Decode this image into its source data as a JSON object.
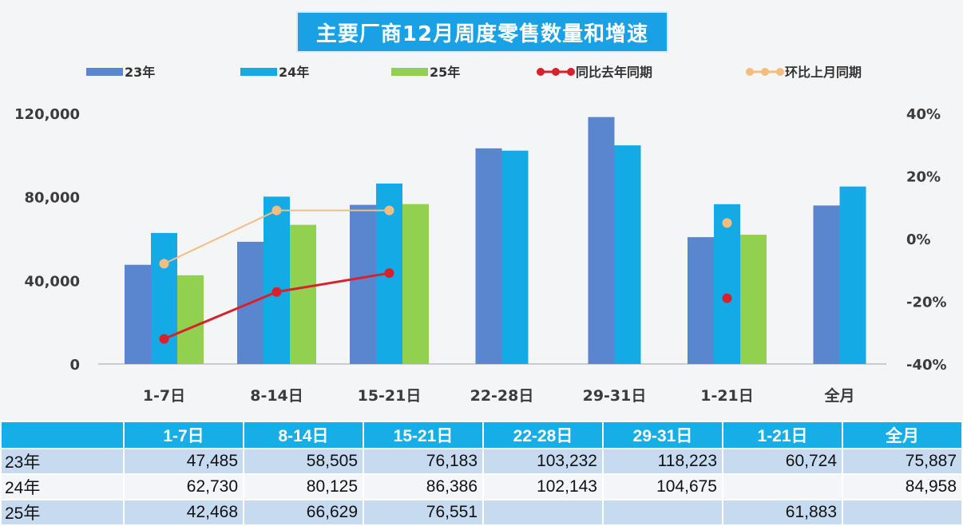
{
  "chart_data": {
    "type": "bar",
    "title": "主要厂商12月周度零售数量和增速",
    "categories": [
      "1-7日",
      "8-14日",
      "15-21日",
      "22-28日",
      "29-31日",
      "1-21日",
      "全月"
    ],
    "series": [
      {
        "name": "23年",
        "kind": "bar",
        "axis": "left",
        "color": "#5a86cf",
        "values": [
          47485,
          58505,
          76183,
          103232,
          118223,
          60724,
          75887
        ]
      },
      {
        "name": "24年",
        "kind": "bar",
        "axis": "left",
        "color": "#14aae6",
        "values": [
          62730,
          80125,
          86386,
          102143,
          104675,
          76500,
          84958
        ]
      },
      {
        "name": "25年",
        "kind": "bar",
        "axis": "left",
        "color": "#92d050",
        "values": [
          42468,
          66629,
          76551,
          null,
          null,
          61883,
          null
        ]
      },
      {
        "name": "同比去年同期",
        "kind": "line",
        "axis": "right",
        "color": "#d7212d",
        "values": [
          -0.32,
          -0.17,
          -0.11,
          null,
          null,
          -0.19,
          null
        ]
      },
      {
        "name": "环比上月同期",
        "kind": "line",
        "axis": "right",
        "color": "#f4bd80",
        "values": [
          -0.08,
          0.09,
          0.09,
          null,
          null,
          0.05,
          null
        ]
      }
    ],
    "left_axis": {
      "ylim": [
        0,
        120000
      ],
      "ticks": [
        "0",
        "40,000",
        "80,000",
        "120,000"
      ]
    },
    "right_axis": {
      "ylim": [
        -0.4,
        0.4
      ],
      "ticks": [
        "-40%",
        "-20%",
        "0%",
        "20%",
        "40%"
      ]
    },
    "legend_position": "top",
    "grid": false
  },
  "table": {
    "headers": [
      "",
      "1-7日",
      "8-14日",
      "15-21日",
      "22-28日",
      "29-31日",
      "1-21日",
      "全月"
    ],
    "rows": [
      {
        "label": "23年",
        "cells": [
          "47,485",
          "58,505",
          "76,183",
          "103,232",
          "118,223",
          "60,724",
          "75,887"
        ]
      },
      {
        "label": "24年",
        "cells": [
          "62,730",
          "80,125",
          "86,386",
          "102,143",
          "104,675",
          "",
          "84,958"
        ]
      },
      {
        "label": "25年",
        "cells": [
          "42,468",
          "66,629",
          "76,551",
          "",
          "",
          "61,883",
          ""
        ]
      }
    ]
  }
}
